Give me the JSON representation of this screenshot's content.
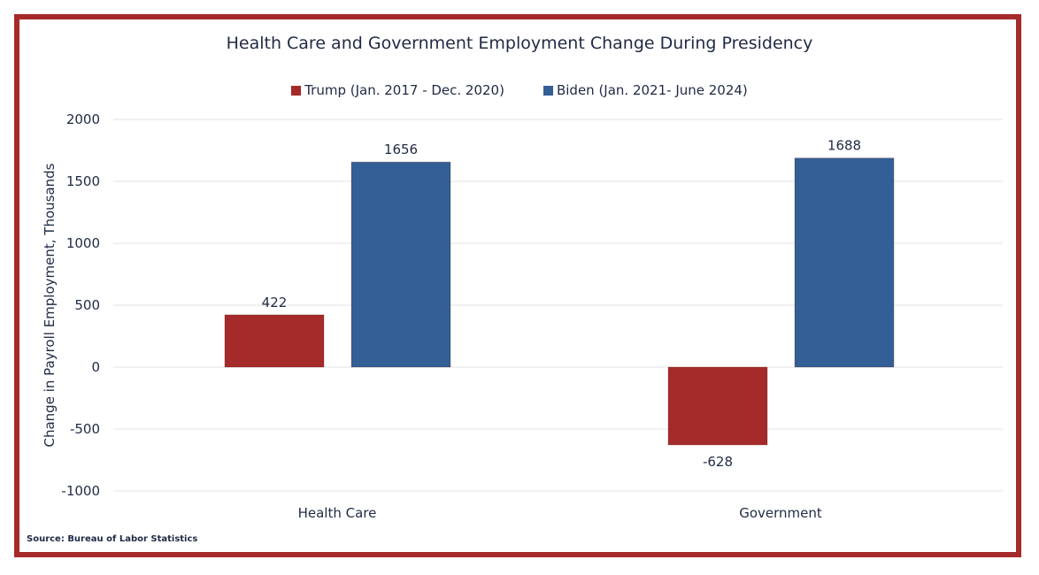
{
  "chart_data": {
    "type": "bar",
    "title": "Health Care and Government Employment Change During Presidency",
    "ylabel": "Change in Payroll Employment, Thousands",
    "xlabel": "",
    "categories": [
      "Health Care",
      "Government"
    ],
    "series": [
      {
        "name": "Trump (Jan. 2017 - Dec. 2020)",
        "color": "#a52a2a",
        "values": [
          422,
          -628
        ]
      },
      {
        "name": "Biden (Jan. 2021- June 2024)",
        "color": "#335e96",
        "values": [
          1656,
          1688
        ]
      }
    ],
    "ylim": [
      -1000,
      2000
    ],
    "yticks": [
      2000,
      1500,
      1000,
      500,
      0,
      -500,
      -1000
    ],
    "grid": true,
    "legend_position": "top"
  },
  "source": "Source: Bureau of Labor Statistics"
}
